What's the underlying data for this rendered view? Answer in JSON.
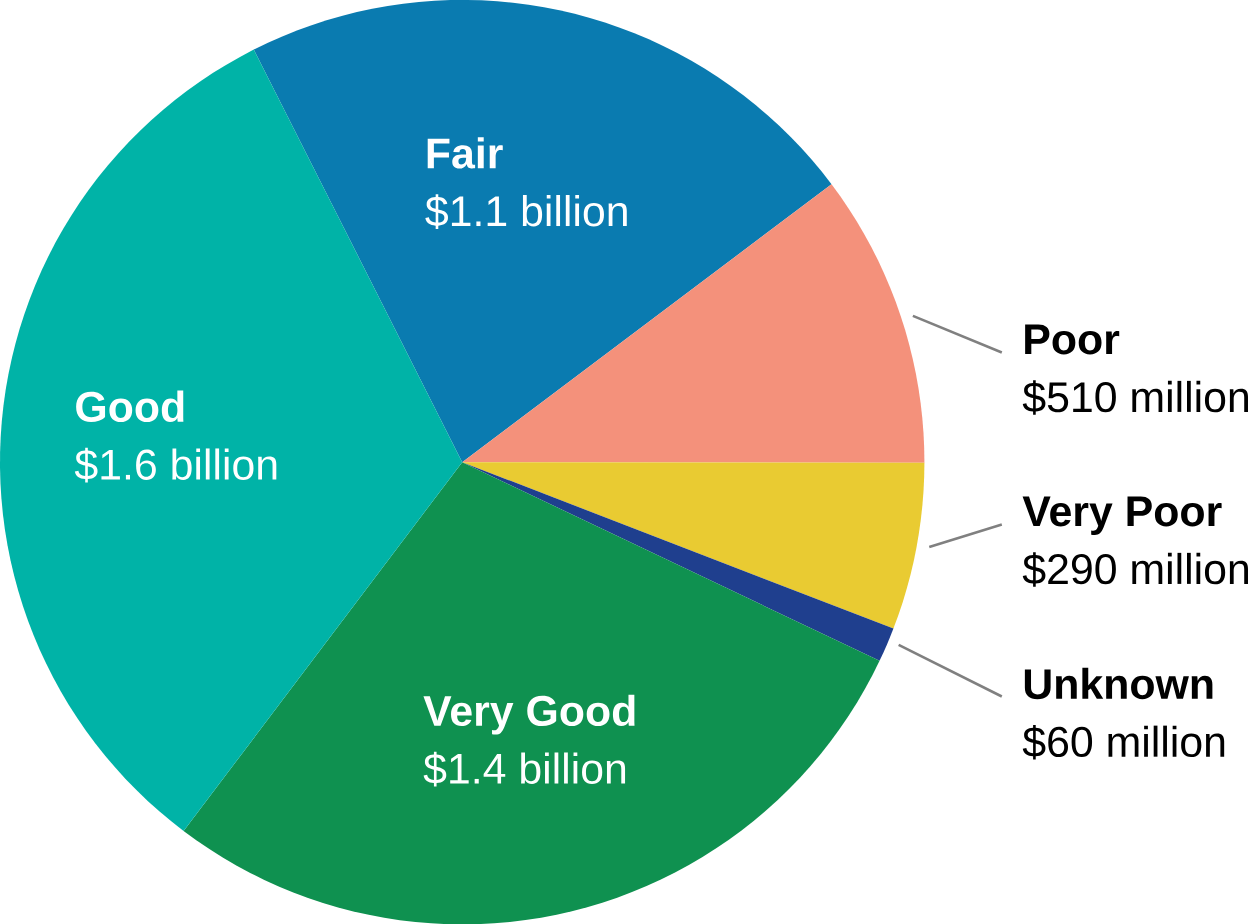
{
  "chart_data": {
    "type": "pie",
    "categories": [
      "Fair",
      "Poor",
      "Very Poor",
      "Unknown",
      "Very Good",
      "Good"
    ],
    "values": [
      1100000000,
      510000000,
      290000000,
      60000000,
      1400000000,
      1600000000
    ],
    "colors": [
      "#0a7bb0",
      "#f4917b",
      "#e9cb32",
      "#1f3f8e",
      "#0f9150",
      "#00b3a7"
    ],
    "value_labels": [
      "$1.1 billion",
      "$510 million",
      "$290 million",
      "$60 million",
      "$1.4 billion",
      "$1.6 billion"
    ]
  }
}
